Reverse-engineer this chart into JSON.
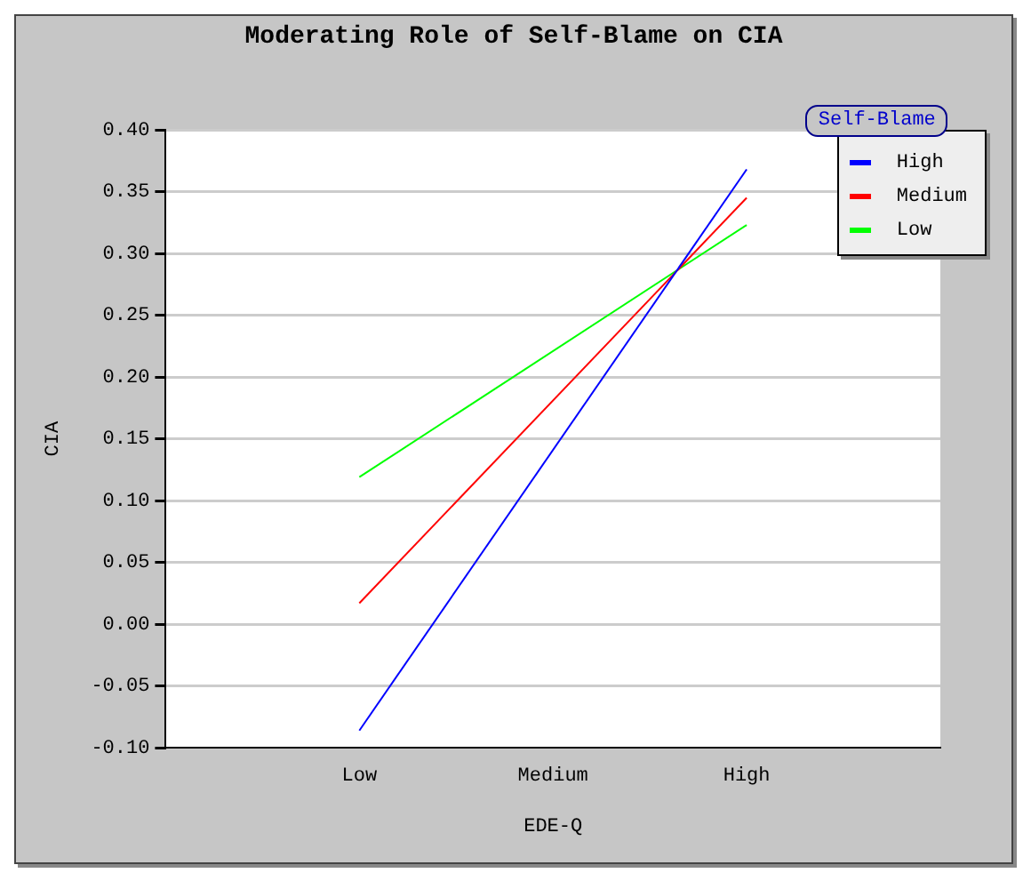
{
  "chart_data": {
    "type": "line",
    "title": "Moderating Role of Self-Blame on CIA",
    "xlabel": "EDE-Q",
    "ylabel": "CIA",
    "legend_title": "Self-Blame",
    "legend": "top right",
    "grid": "y",
    "marker": "none",
    "line_style": "solid",
    "categories": [
      null,
      "Low",
      "Medium",
      "High",
      null
    ],
    "ylim": [
      -0.1,
      0.4
    ],
    "yticks": [
      {
        "value": -0.1,
        "label": "-0.10"
      },
      {
        "value": -0.05,
        "label": "-0.05"
      },
      {
        "value": 0,
        "label": "0.00"
      },
      {
        "value": 0.05,
        "label": "0.05"
      },
      {
        "value": 0.1,
        "label": "0.10"
      },
      {
        "value": 0.15,
        "label": "0.15"
      },
      {
        "value": 0.2,
        "label": "0.20"
      },
      {
        "value": 0.25,
        "label": "0.25"
      },
      {
        "value": 0.3,
        "label": "0.30"
      },
      {
        "value": 0.35,
        "label": "0.35"
      },
      {
        "value": 0.4,
        "label": "0.40"
      }
    ],
    "series": [
      {
        "name": "High",
        "color": "#0000ff",
        "values": [
          null,
          -0.086,
          null,
          0.368,
          null
        ]
      },
      {
        "name": "Medium",
        "color": "#ff0000",
        "values": [
          null,
          0.017,
          null,
          0.345,
          null
        ]
      },
      {
        "name": "Low",
        "color": "#00ff00",
        "values": [
          null,
          0.119,
          null,
          0.323,
          null
        ]
      }
    ]
  }
}
